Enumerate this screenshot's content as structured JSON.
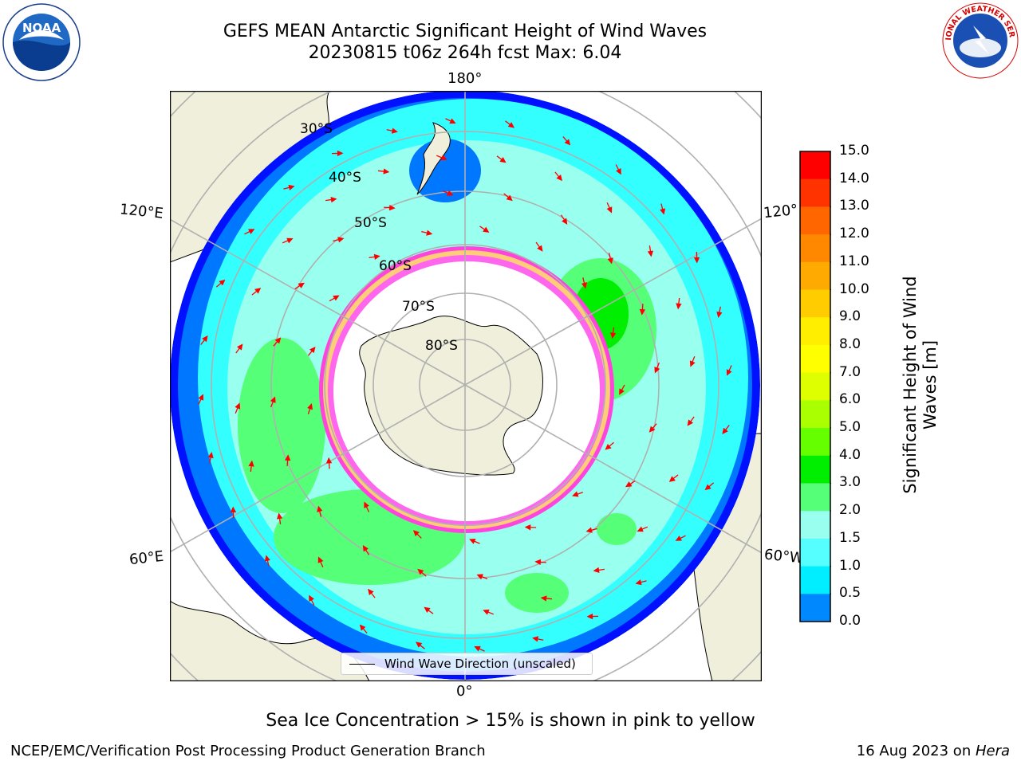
{
  "title": {
    "line1": "GEFS MEAN Antarctic Significant Height of Wind Waves",
    "line2": "20230815 t06z 264h fcst   Max: 6.04"
  },
  "map": {
    "lon_labels": {
      "top": "180°",
      "bottom": "0°",
      "left_upper": "120°E",
      "left_lower": "60°E",
      "right_upper": "120°",
      "right_lower": "60°W"
    },
    "lat_labels": [
      "30°S",
      "40°S",
      "50°S",
      "60°S",
      "70°S",
      "80°S"
    ],
    "legend": "Wind Wave Direction (unscaled)",
    "colors": {
      "land": "#efefdb",
      "ice_shelf": "#ffffff",
      "grid": "#b0b0b0",
      "arrow": "#ff0000",
      "sea_ice": "#ff44dd"
    }
  },
  "colorbar": {
    "label_line1": "Significant Height of Wind",
    "label_line2": "Waves [m]",
    "ticks": [
      "15.0",
      "14.0",
      "13.0",
      "12.0",
      "11.0",
      "10.0",
      "9.0",
      "8.0",
      "7.0",
      "6.0",
      "5.0",
      "4.0",
      "3.0",
      "2.0",
      "1.5",
      "1.0",
      "0.5",
      "0.0"
    ],
    "colors_top_to_bottom": [
      "#ff0000",
      "#ff3300",
      "#ff6600",
      "#ff8800",
      "#ffaa00",
      "#ffcc00",
      "#ffee00",
      "#ffff00",
      "#ddff00",
      "#aaff00",
      "#66ff00",
      "#00ee00",
      "#55ff77",
      "#99ffee",
      "#55ffff",
      "#00eeff",
      "#0088ff",
      "#0000ff"
    ]
  },
  "footer": {
    "caption": "Sea Ice Concentration > 15% is shown in pink to yellow",
    "left": "NCEP/EMC/Verification Post Processing Product Generation Branch",
    "right_date": "16 Aug 2023 on ",
    "right_host": "Hera"
  },
  "logos": {
    "noaa": "NOAA",
    "nws": "NATIONAL WEATHER SERVICE"
  }
}
